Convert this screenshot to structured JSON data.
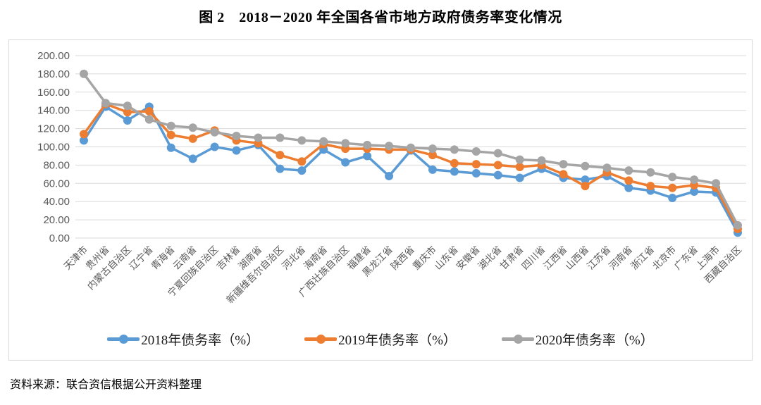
{
  "page": {
    "title": "图 2　2018－2020 年全国各省市地方政府债务率变化情况",
    "source_note": "资料来源：联合资信根据公开资料整理"
  },
  "colors": {
    "series_2018": "#5B9BD5",
    "series_2019": "#ED7D31",
    "series_2020": "#A5A5A5",
    "gridline": "#D9D9D9",
    "axis_text": "#595959",
    "frame_border": "#D9D9D9"
  },
  "chart_data": {
    "type": "line",
    "title": "图 2　2018－2020 年全国各省市地方政府债务率变化情况",
    "xlabel": "",
    "ylabel": "",
    "ylim": [
      0,
      200
    ],
    "yticks": [
      0,
      20,
      40,
      60,
      80,
      100,
      120,
      140,
      160,
      180,
      200
    ],
    "ytick_label_format": "two_decimals",
    "grid": true,
    "legend_position": "bottom",
    "categories": [
      "天津市",
      "贵州省",
      "内蒙古自治区",
      "辽宁省",
      "青海省",
      "云南省",
      "宁夏回族自治区",
      "吉林省",
      "湖南省",
      "新疆维吾尔自治区",
      "河北省",
      "海南省",
      "广西壮族自治区",
      "福建省",
      "黑龙江省",
      "陕西省",
      "重庆市",
      "山东省",
      "安徽省",
      "湖北省",
      "甘肃省",
      "四川省",
      "江西省",
      "山西省",
      "江苏省",
      "河南省",
      "浙江省",
      "北京市",
      "广东省",
      "上海市",
      "西藏自治区"
    ],
    "series": [
      {
        "name": "2018年债务率（%）",
        "color": "#5B9BD5",
        "values": [
          107,
          144,
          129,
          144,
          99,
          87,
          100,
          96,
          102,
          76,
          74,
          97,
          83,
          90,
          68,
          96,
          75,
          73,
          71,
          69,
          66,
          76,
          66,
          64,
          68,
          55,
          52,
          44,
          51,
          50,
          6
        ]
      },
      {
        "name": "2019年债务率（%）",
        "color": "#ED7D31",
        "values": [
          114,
          147,
          138,
          139,
          113,
          109,
          118,
          107,
          104,
          91,
          84,
          103,
          98,
          98,
          97,
          97,
          91,
          82,
          81,
          80,
          78,
          80,
          70,
          57,
          72,
          63,
          57,
          55,
          58,
          55,
          10
        ]
      },
      {
        "name": "2020年债务率（%）",
        "color": "#A5A5A5",
        "values": [
          180,
          148,
          145,
          130,
          123,
          121,
          116,
          112,
          110,
          110,
          107,
          106,
          104,
          102,
          101,
          99,
          98,
          97,
          95,
          93,
          86,
          85,
          81,
          79,
          77,
          74,
          72,
          67,
          64,
          60,
          14
        ]
      }
    ]
  }
}
